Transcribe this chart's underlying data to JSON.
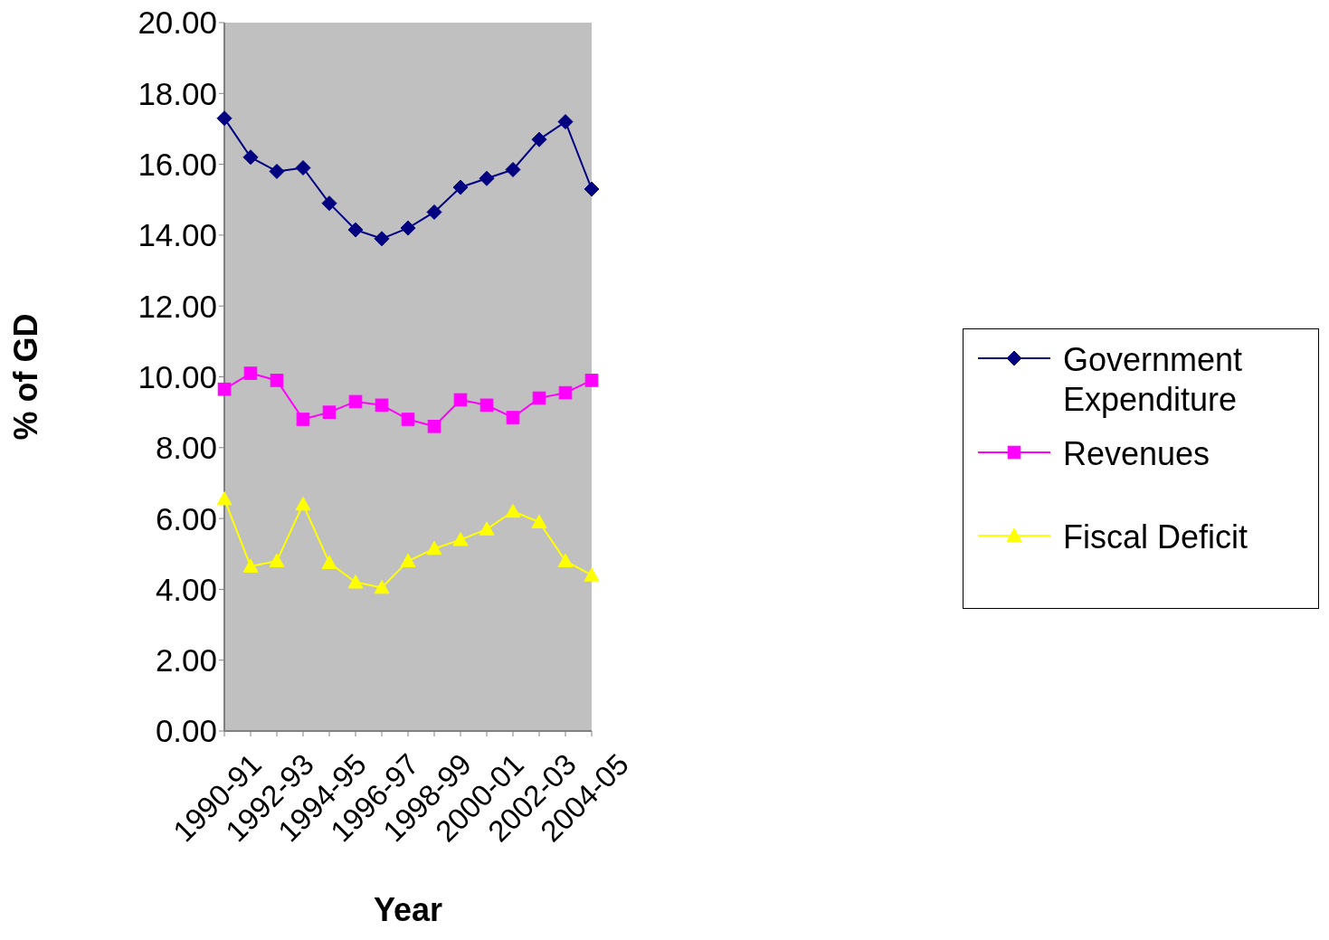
{
  "chart_data": {
    "type": "line",
    "xlabel": "Year",
    "ylabel": "% of GD",
    "categories": [
      "1990-91",
      null,
      "1992-93",
      null,
      "1994-95",
      null,
      "1996-97",
      null,
      "1998-99",
      null,
      "2000-01",
      null,
      "2002-03",
      null,
      "2004-05"
    ],
    "series": [
      {
        "name": "Government Expenditure",
        "color": "#000080",
        "marker": "diamond",
        "values": [
          17.3,
          16.2,
          15.8,
          15.9,
          14.9,
          14.15,
          13.9,
          14.2,
          14.65,
          15.35,
          15.6,
          15.85,
          16.7,
          17.2,
          15.3
        ]
      },
      {
        "name": "Revenues",
        "color": "#ff00ff",
        "marker": "square",
        "values": [
          9.65,
          10.1,
          9.9,
          8.8,
          9.0,
          9.3,
          9.2,
          8.8,
          8.6,
          9.35,
          9.2,
          8.85,
          9.4,
          9.55,
          9.9
        ]
      },
      {
        "name": "Fiscal Deficit",
        "color": "#ffff00",
        "marker": "triangle",
        "values": [
          6.55,
          4.65,
          4.8,
          6.4,
          4.75,
          4.2,
          4.05,
          4.8,
          5.15,
          5.4,
          5.7,
          6.2,
          5.9,
          4.8,
          4.4
        ]
      }
    ],
    "ylim": [
      0,
      20
    ],
    "yticks": [
      {
        "value": 0,
        "label": "0.00"
      },
      {
        "value": 2,
        "label": "2.00"
      },
      {
        "value": 4,
        "label": "4.00"
      },
      {
        "value": 6,
        "label": "6.00"
      },
      {
        "value": 8,
        "label": "8.00"
      },
      {
        "value": 10,
        "label": "10.00"
      },
      {
        "value": 12,
        "label": "12.00"
      },
      {
        "value": 14,
        "label": "14.00"
      },
      {
        "value": 16,
        "label": "16.00"
      },
      {
        "value": 18,
        "label": "18.00"
      },
      {
        "value": 20,
        "label": "20.00"
      }
    ],
    "grid": false,
    "legend": "right"
  }
}
